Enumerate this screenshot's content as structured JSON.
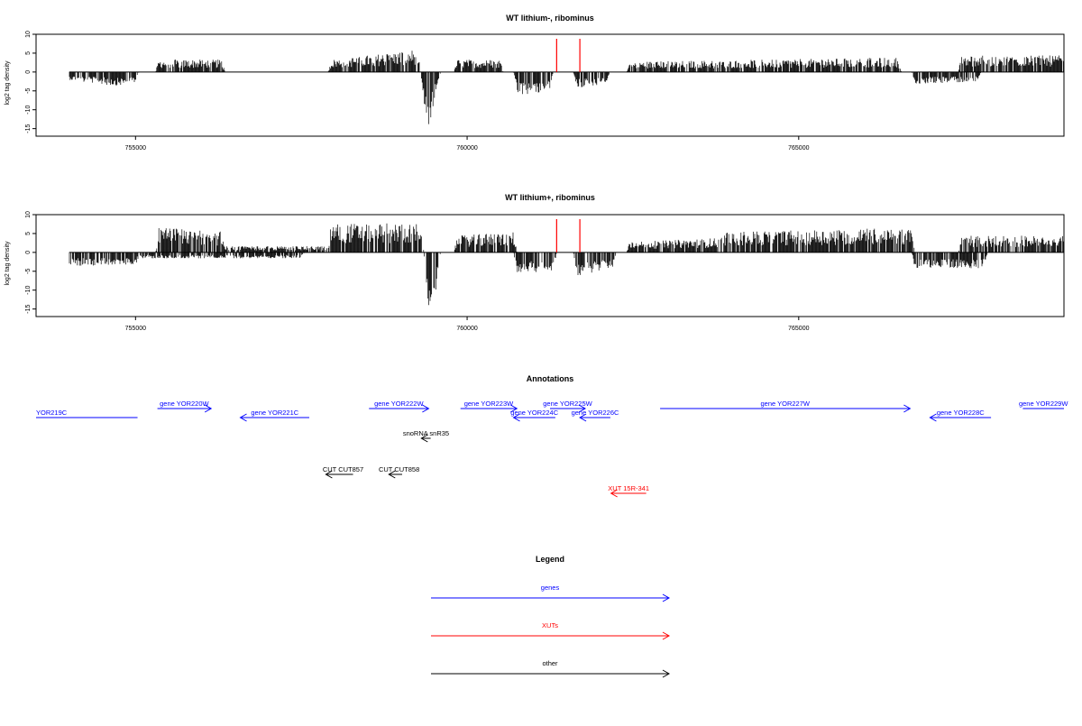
{
  "colors": {
    "gene": "#0000ff",
    "xut": "#ff0000",
    "other": "#000000",
    "marker": "#ff0000",
    "axis": "#000000",
    "bars": "#000000"
  },
  "chart_data": [
    {
      "type": "bar",
      "title": "WT lithium-, ribominus",
      "ylabel": "log2 tag density",
      "xlim": [
        753500,
        769000
      ],
      "ylim": [
        -17,
        10
      ],
      "x_ticks": [
        755000,
        760000,
        765000
      ],
      "x_tick_labels": [
        "755000",
        "760000",
        "765000"
      ],
      "y_ticks": [
        10,
        5,
        0,
        -5,
        -10,
        -15
      ],
      "y_tick_labels": [
        "10",
        "5",
        "0",
        "-5",
        "-10",
        "-15"
      ],
      "markers": [
        761350,
        761700
      ],
      "profile": {
        "forward": [
          [
            754000,
            0
          ],
          [
            755300,
            0
          ],
          [
            755350,
            3
          ],
          [
            756300,
            3
          ],
          [
            756350,
            0
          ],
          [
            757900,
            0
          ],
          [
            757950,
            3
          ],
          [
            759250,
            5.5
          ],
          [
            759300,
            0
          ],
          [
            759800,
            0
          ],
          [
            759850,
            3
          ],
          [
            760500,
            3
          ],
          [
            760550,
            0
          ],
          [
            762400,
            0
          ],
          [
            762450,
            2.5
          ],
          [
            766500,
            3.5
          ],
          [
            766550,
            0
          ],
          [
            767400,
            0
          ],
          [
            767450,
            4
          ],
          [
            769000,
            4
          ]
        ],
        "reverse": [
          [
            754000,
            2
          ],
          [
            754700,
            3.5
          ],
          [
            755000,
            3
          ],
          [
            755050,
            0
          ],
          [
            759300,
            0
          ],
          [
            759380,
            12
          ],
          [
            759420,
            14
          ],
          [
            759500,
            8
          ],
          [
            759600,
            0
          ],
          [
            760700,
            0
          ],
          [
            760750,
            6
          ],
          [
            761250,
            5
          ],
          [
            761300,
            0
          ],
          [
            761600,
            0
          ],
          [
            761650,
            4
          ],
          [
            762100,
            3
          ],
          [
            762150,
            0
          ],
          [
            766700,
            0
          ],
          [
            766750,
            3
          ],
          [
            767700,
            2.5
          ],
          [
            767750,
            0
          ],
          [
            769000,
            0
          ]
        ]
      }
    },
    {
      "type": "bar",
      "title": "WT lithium+, ribominus",
      "ylabel": "log2 tag density",
      "xlim": [
        753500,
        769000
      ],
      "ylim": [
        -17,
        10
      ],
      "x_ticks": [
        755000,
        760000,
        765000
      ],
      "x_tick_labels": [
        "755000",
        "760000",
        "765000"
      ],
      "y_ticks": [
        10,
        5,
        0,
        -5,
        -10,
        -15
      ],
      "y_tick_labels": [
        "10",
        "5",
        "0",
        "-5",
        "-10",
        "-15"
      ],
      "markers": [
        761350,
        761700
      ],
      "profile": {
        "forward": [
          [
            754000,
            0
          ],
          [
            755300,
            0
          ],
          [
            755350,
            6
          ],
          [
            756300,
            5
          ],
          [
            756350,
            1.5
          ],
          [
            757900,
            1.5
          ],
          [
            757950,
            7
          ],
          [
            759300,
            7
          ],
          [
            759350,
            0
          ],
          [
            759800,
            0
          ],
          [
            759850,
            4
          ],
          [
            760700,
            5
          ],
          [
            760750,
            0
          ],
          [
            762400,
            0
          ],
          [
            762450,
            2.5
          ],
          [
            763800,
            3.5
          ],
          [
            763850,
            5
          ],
          [
            766700,
            6
          ],
          [
            766750,
            0
          ],
          [
            767400,
            0
          ],
          [
            767450,
            4
          ],
          [
            769000,
            4
          ]
        ],
        "reverse": [
          [
            754000,
            3.5
          ],
          [
            755000,
            3
          ],
          [
            755050,
            1.5
          ],
          [
            757500,
            1.5
          ],
          [
            757550,
            0
          ],
          [
            759350,
            0
          ],
          [
            759400,
            13
          ],
          [
            759450,
            15
          ],
          [
            759550,
            8
          ],
          [
            759600,
            0
          ],
          [
            760700,
            0
          ],
          [
            760750,
            5
          ],
          [
            761300,
            5
          ],
          [
            761350,
            0
          ],
          [
            761600,
            0
          ],
          [
            761650,
            6
          ],
          [
            762200,
            4
          ],
          [
            762250,
            0
          ],
          [
            766700,
            0
          ],
          [
            766750,
            4
          ],
          [
            767800,
            4
          ],
          [
            767850,
            0
          ],
          [
            769000,
            0
          ]
        ]
      }
    }
  ],
  "annotations": {
    "title": "Annotations",
    "genes": [
      {
        "label": "YOR219C",
        "start": 753500,
        "end": 755030,
        "dir": "none",
        "row": 1,
        "label_pos": "left"
      },
      {
        "label": "gene YOR220W",
        "start": 755330,
        "end": 756140,
        "dir": "right",
        "row": 0
      },
      {
        "label": "gene YOR221C",
        "start": 756580,
        "end": 757620,
        "dir": "left",
        "row": 1
      },
      {
        "label": "gene YOR222W",
        "start": 758520,
        "end": 759420,
        "dir": "right",
        "row": 0
      },
      {
        "label": "gene YOR223W",
        "start": 759900,
        "end": 760750,
        "dir": "right",
        "row": 0
      },
      {
        "label": "gene YOR224C",
        "start": 760700,
        "end": 761330,
        "dir": "left",
        "row": 1
      },
      {
        "label": "gene YOR225W",
        "start": 761250,
        "end": 761780,
        "dir": "right",
        "row": 0
      },
      {
        "label": "gene YOR226C",
        "start": 761700,
        "end": 762160,
        "dir": "left",
        "row": 1
      },
      {
        "label": "gene YOR227W",
        "start": 762910,
        "end": 766680,
        "dir": "right",
        "row": 0
      },
      {
        "label": "gene YOR228C",
        "start": 766980,
        "end": 767900,
        "dir": "left",
        "row": 1
      },
      {
        "label": "gene YOR229W",
        "start": 768380,
        "end": 769000,
        "dir": "none",
        "row": 0
      }
    ],
    "other": [
      {
        "label": "snoRNA snR35",
        "start": 759310,
        "end": 759450,
        "dir": "left",
        "row": 2
      },
      {
        "label": "CUT CUT857",
        "start": 757870,
        "end": 758280,
        "dir": "left",
        "row": 3,
        "label_pos": "right"
      },
      {
        "label": "CUT CUT858",
        "start": 758820,
        "end": 759020,
        "dir": "left",
        "row": 3,
        "label_pos": "right"
      }
    ],
    "xuts": [
      {
        "label": "XUT 15R-341",
        "start": 762170,
        "end": 762700,
        "dir": "left",
        "row": 4
      }
    ]
  },
  "legend": {
    "title": "Legend",
    "entries": [
      {
        "label": "genes",
        "color_key": "gene"
      },
      {
        "label": "XUTs",
        "color_key": "xut"
      },
      {
        "label": "other",
        "color_key": "other"
      }
    ]
  }
}
